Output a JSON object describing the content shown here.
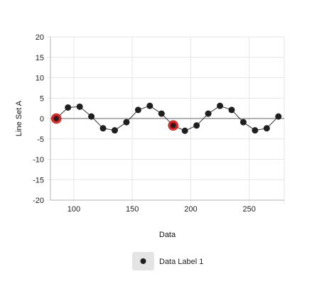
{
  "chart_data": {
    "type": "line",
    "xlabel": "Data",
    "ylabel": "Line Set A",
    "xlim": [
      80,
      280
    ],
    "ylim": [
      -20,
      20
    ],
    "x_ticks": [
      100,
      150,
      200,
      250
    ],
    "y_ticks": [
      20,
      15,
      10,
      5,
      0,
      -5,
      -10,
      -15,
      -20
    ],
    "grid": true,
    "legend_position": "bottom",
    "series": [
      {
        "name": "Data Label 1",
        "color": "#1f1f1f",
        "x": [
          85,
          95,
          105,
          115,
          125,
          135,
          145,
          155,
          165,
          175,
          185,
          195,
          205,
          215,
          225,
          235,
          245,
          255,
          265,
          275
        ],
        "values": [
          0.0,
          2.7,
          2.9,
          0.5,
          -2.4,
          -2.9,
          -0.9,
          2.1,
          3.1,
          1.2,
          -1.7,
          -3.0,
          -1.7,
          1.2,
          3.1,
          2.1,
          -0.9,
          -2.9,
          -2.4,
          0.5
        ],
        "highlighted_x": [
          85,
          185
        ],
        "highlight_color": "#cc1111"
      }
    ],
    "zero_line_color": "#9a9a9a"
  }
}
